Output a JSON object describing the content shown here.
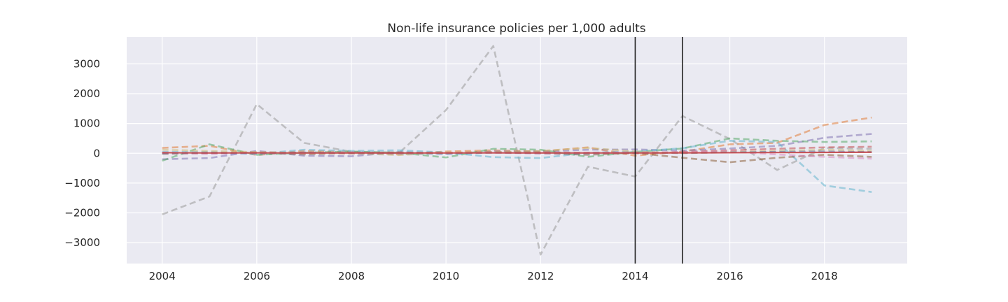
{
  "chart_data": {
    "type": "line",
    "title": "Non-life insurance policies per 1,000 adults",
    "xlabel": "",
    "ylabel": "",
    "x": [
      2004,
      2005,
      2006,
      2007,
      2008,
      2009,
      2010,
      2011,
      2012,
      2013,
      2014,
      2015,
      2016,
      2017,
      2018,
      2019
    ],
    "xlim": [
      2003.25,
      2019.75
    ],
    "ylim": [
      -3700,
      3900
    ],
    "xticks": [
      2004,
      2006,
      2008,
      2010,
      2012,
      2014,
      2016,
      2018
    ],
    "xtick_labels": [
      "2004",
      "2006",
      "2008",
      "2010",
      "2012",
      "2014",
      "2016",
      "2018"
    ],
    "yticks": [
      -3000,
      -2000,
      -1000,
      0,
      1000,
      2000,
      3000
    ],
    "ytick_labels": [
      "−3000",
      "−2000",
      "−1000",
      "0",
      "1000",
      "2000",
      "3000"
    ],
    "grid": true,
    "legend": "none",
    "vertical_lines": [
      2014,
      2015
    ],
    "series": [
      {
        "color": "#999999",
        "style": "dashed",
        "values": [
          -2050,
          -1450,
          1650,
          350,
          50,
          0,
          1450,
          3600,
          -3400,
          -450,
          -780,
          1250,
          480,
          -560,
          180,
          150
        ]
      },
      {
        "color": "#e07b39",
        "style": "dashed",
        "values": [
          180,
          250,
          -60,
          80,
          40,
          -40,
          60,
          100,
          60,
          200,
          -80,
          60,
          300,
          350,
          950,
          1200
        ]
      },
      {
        "color": "#8172b2",
        "style": "dashed",
        "values": [
          -200,
          -160,
          80,
          -80,
          -100,
          40,
          -20,
          60,
          60,
          120,
          130,
          90,
          160,
          250,
          520,
          650
        ]
      },
      {
        "color": "#55a868",
        "style": "dashed",
        "values": [
          -250,
          300,
          -50,
          20,
          60,
          20,
          -140,
          150,
          120,
          -120,
          50,
          160,
          500,
          420,
          380,
          400
        ]
      },
      {
        "color": "#64b5cd",
        "style": "dashed",
        "values": [
          50,
          40,
          -20,
          120,
          80,
          100,
          30,
          -130,
          -160,
          20,
          60,
          170,
          420,
          380,
          -1080,
          -1300
        ]
      },
      {
        "color": "#8c613c",
        "style": "dashed",
        "values": [
          -20,
          10,
          20,
          -40,
          20,
          30,
          0,
          30,
          0,
          -50,
          10,
          -150,
          -300,
          -150,
          -50,
          -120
        ]
      },
      {
        "color": "#c44e52",
        "style": "dashed",
        "values": [
          10,
          0,
          30,
          20,
          -10,
          10,
          20,
          40,
          30,
          20,
          0,
          40,
          100,
          150,
          200,
          220
        ]
      },
      {
        "color": "#da8bc3",
        "style": "dashed",
        "values": [
          20,
          -20,
          10,
          0,
          30,
          -20,
          10,
          20,
          -10,
          10,
          40,
          30,
          60,
          -40,
          -120,
          -180
        ]
      },
      {
        "color": "#ccb974",
        "style": "dashed",
        "values": [
          120,
          80,
          40,
          10,
          0,
          -60,
          20,
          40,
          80,
          180,
          60,
          0,
          40,
          80,
          120,
          80
        ]
      },
      {
        "color": "#4c72b0",
        "style": "dashed",
        "values": [
          0,
          20,
          -10,
          30,
          10,
          0,
          -10,
          20,
          10,
          0,
          20,
          10,
          30,
          50,
          60,
          40
        ]
      },
      {
        "color": "#c44e52",
        "style": "solid",
        "values": [
          20,
          10,
          15,
          10,
          12,
          10,
          10,
          15,
          12,
          10,
          12,
          15,
          20,
          25,
          30,
          35
        ]
      }
    ]
  }
}
